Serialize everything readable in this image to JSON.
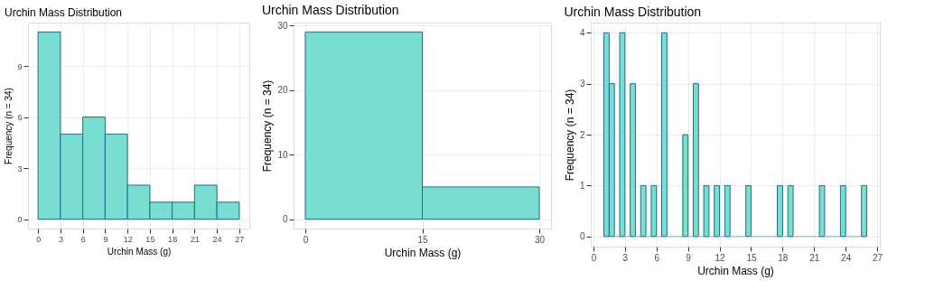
{
  "chart_data": [
    {
      "type": "histogram",
      "title": "Urchin Mass Distribution",
      "xlabel": "Urchin Mass (g)",
      "ylabel": "Frequency (n = 34)",
      "color": "#79ddd2",
      "bins": [
        0,
        3,
        6,
        9,
        12,
        15,
        18,
        21,
        24,
        27
      ],
      "values": [
        11,
        5,
        6,
        5,
        2,
        1,
        1,
        2,
        1
      ],
      "xlim": [
        -1.35,
        28.35
      ],
      "ylim": [
        -0.55,
        11.55
      ],
      "xticks": [
        0,
        3,
        6,
        9,
        12,
        15,
        18,
        21,
        24,
        27
      ],
      "yticks": [
        0,
        3,
        6,
        9
      ],
      "grid": true
    },
    {
      "type": "histogram",
      "title": "Urchin Mass Distribution",
      "xlabel": "Urchin Mass (g)",
      "ylabel": "Frequency (n = 34)",
      "color": "#79ddd2",
      "bins": [
        0,
        15,
        30
      ],
      "values": [
        29,
        5
      ],
      "xlim": [
        -1.5,
        31.5
      ],
      "ylim": [
        -1.45,
        30.45
      ],
      "xticks": [
        0,
        15,
        30
      ],
      "yticks": [
        0,
        10,
        20,
        30
      ],
      "grid": true
    },
    {
      "type": "histogram",
      "title": "Urchin Mass Distribution",
      "xlabel": "Urchin Mass (g)",
      "ylabel": "Frequency (n = 34)",
      "color": "#79ddd2",
      "bins": [
        1,
        1.5,
        2,
        2.5,
        3,
        3.5,
        4,
        4.5,
        5,
        5.5,
        6,
        6.5,
        7,
        7.5,
        8,
        8.5,
        9,
        9.5,
        10,
        10.5,
        11,
        11.5,
        12,
        12.5,
        13,
        13.5,
        14,
        14.5,
        15,
        15.5,
        16,
        16.5,
        17,
        17.5,
        18,
        18.5,
        19,
        19.5,
        20,
        20.5,
        21,
        21.5,
        22,
        22.5,
        23,
        23.5,
        24,
        24.5,
        25,
        25.5,
        26
      ],
      "values": [
        4,
        3,
        0,
        4,
        0,
        3,
        0,
        1,
        0,
        1,
        0,
        4,
        0,
        0,
        0,
        2,
        0,
        3,
        0,
        1,
        0,
        1,
        0,
        1,
        0,
        0,
        0,
        1,
        0,
        0,
        0,
        0,
        0,
        1,
        0,
        1,
        0,
        0,
        0,
        0,
        0,
        1,
        0,
        0,
        0,
        1,
        0,
        0,
        0,
        1
      ],
      "xlim": [
        -0.25,
        27.25
      ],
      "ylim": [
        -0.2,
        4.2
      ],
      "xticks": [
        0,
        3,
        6,
        9,
        12,
        15,
        18,
        21,
        24,
        27
      ],
      "yticks": [
        0,
        1,
        2,
        3,
        4
      ],
      "grid": true
    }
  ]
}
